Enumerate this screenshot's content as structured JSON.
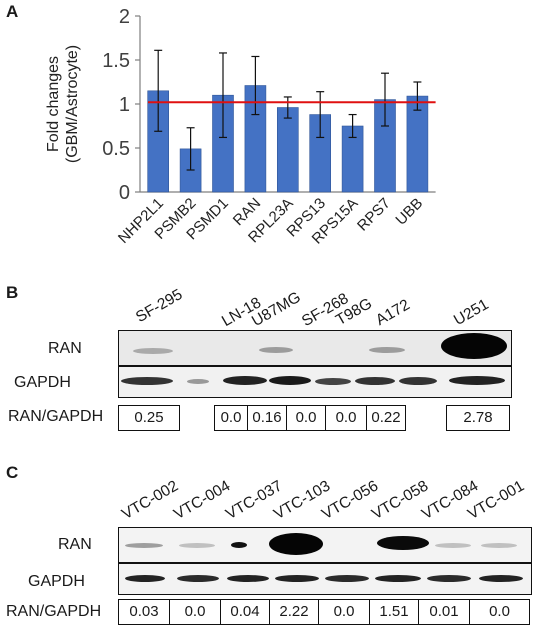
{
  "panels": {
    "a": "A",
    "b": "B",
    "c": "C"
  },
  "chart_data": {
    "type": "bar",
    "title": "",
    "ylabel": "Fold changes (GBM/Astrocyte)",
    "ylabel_lines": [
      "Fold changes",
      "(GBM/Astrocyte)"
    ],
    "xlabel": "",
    "ylim": [
      0,
      2
    ],
    "yticks": [
      "0",
      "0.5",
      "1",
      "1.5",
      "2"
    ],
    "categories": [
      "NHP2L1",
      "PSMB2",
      "PSMD1",
      "RAN",
      "RPL23A",
      "RPS13",
      "RPS15A",
      "RPS7",
      "UBB"
    ],
    "values": [
      1.15,
      0.49,
      1.1,
      1.21,
      0.96,
      0.88,
      0.75,
      1.05,
      1.09
    ],
    "errors": [
      0.46,
      0.24,
      0.48,
      0.33,
      0.12,
      0.26,
      0.13,
      0.3,
      0.16
    ],
    "reference_line": 1.02,
    "bar_color": "#4472c4",
    "reference_color": "#e01010"
  },
  "blot_b": {
    "lanes": [
      "SF-295",
      "LN-18",
      "U87MG",
      "SF-268",
      "T98G",
      "A172",
      "U251"
    ],
    "row_labels": [
      "RAN",
      "GAPDH",
      "RAN/GAPDH"
    ],
    "ratios": [
      "0.25",
      "0.0",
      "0.16",
      "0.0",
      "0.0",
      "0.22",
      "2.78"
    ]
  },
  "blot_c": {
    "lanes": [
      "VTC-002",
      "VTC-004",
      "VTC-037",
      "VTC-103",
      "VTC-056",
      "VTC-058",
      "VTC-084",
      "VTC-001"
    ],
    "row_labels": [
      "RAN",
      "GAPDH",
      "RAN/GAPDH"
    ],
    "ratios": [
      "0.03",
      "0.0",
      "0.04",
      "2.22",
      "0.0",
      "1.51",
      "0.01",
      "0.0"
    ]
  }
}
